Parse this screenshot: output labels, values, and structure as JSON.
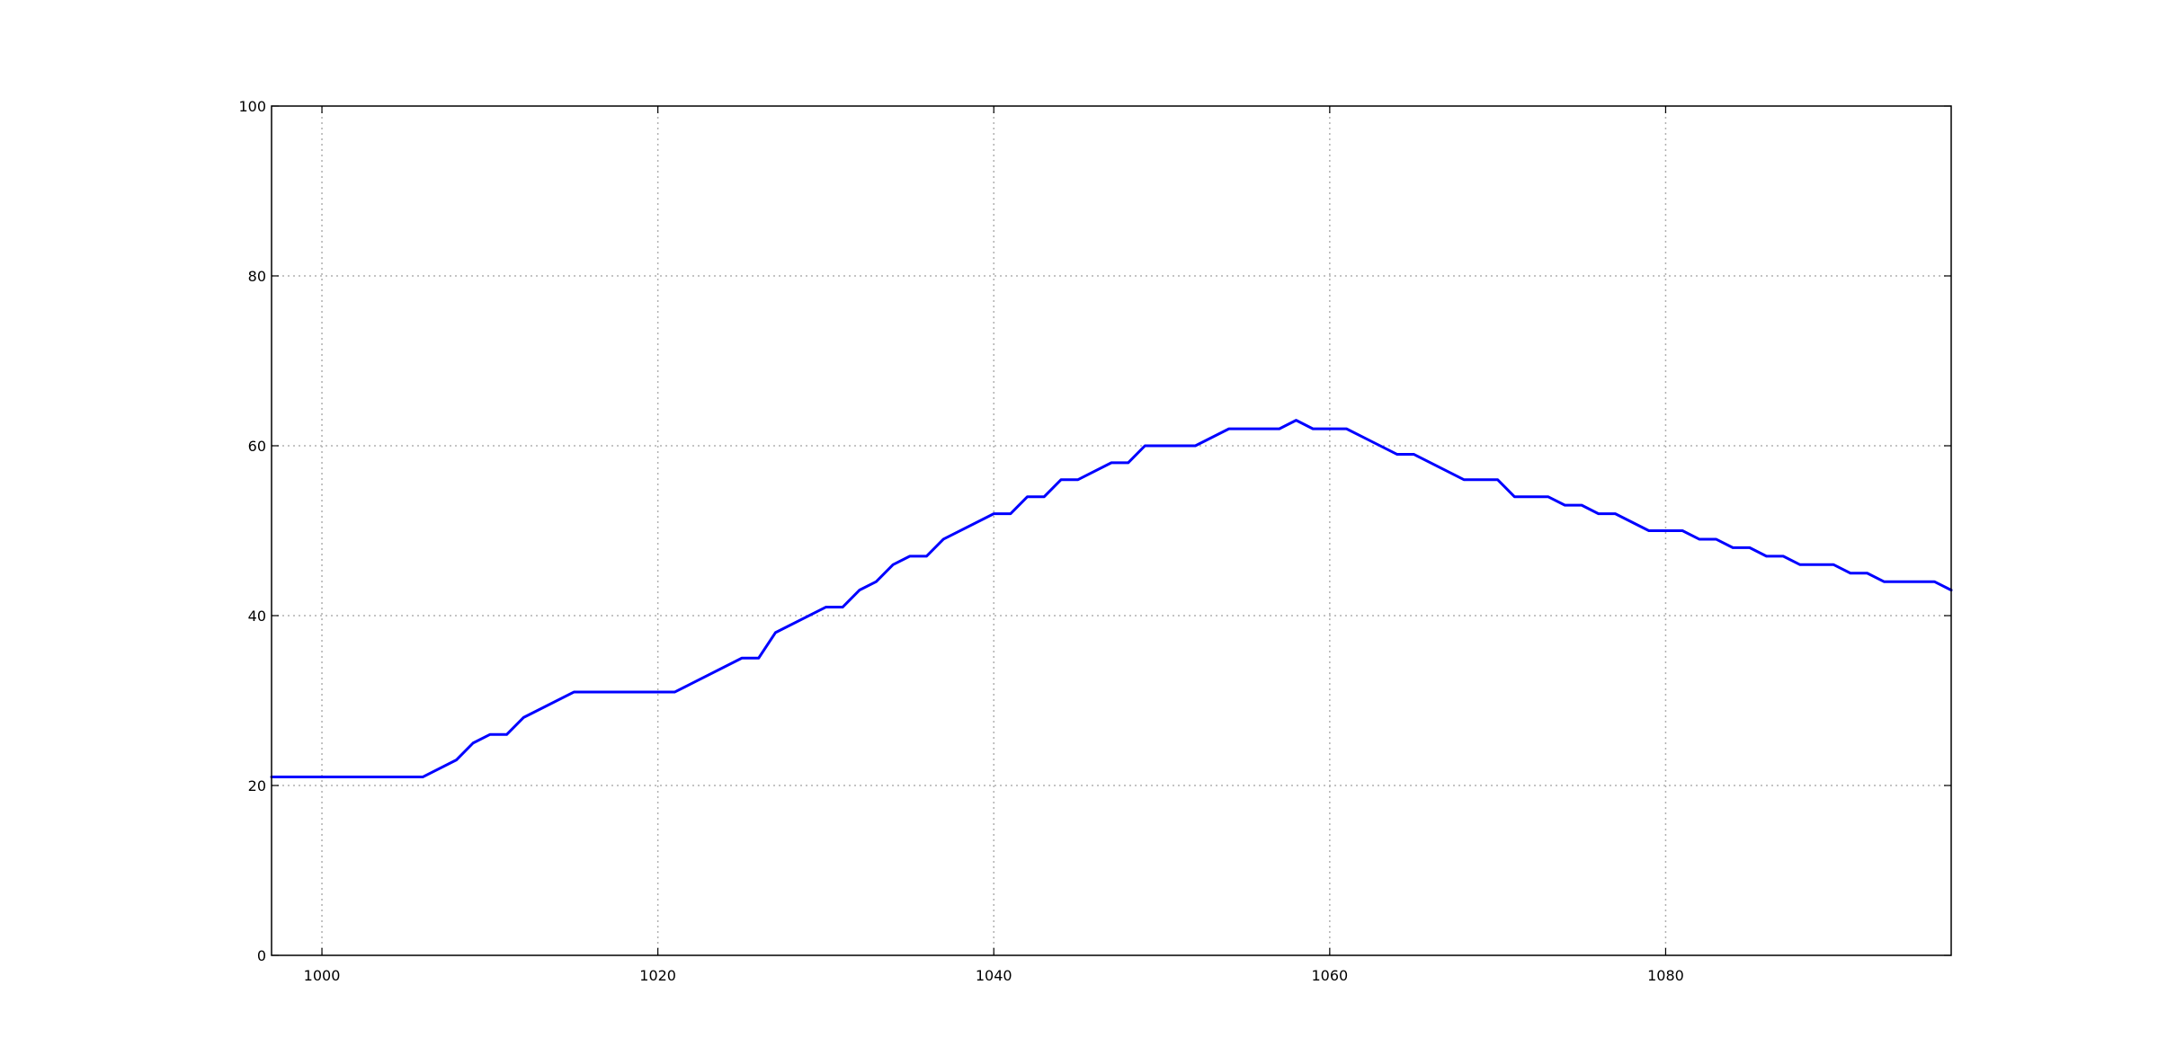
{
  "chart_data": {
    "type": "line",
    "title": "",
    "xlabel": "",
    "ylabel": "",
    "xlim": [
      997,
      1097
    ],
    "ylim": [
      0,
      100
    ],
    "x_ticks": [
      1000,
      1020,
      1040,
      1060,
      1080
    ],
    "y_ticks": [
      0,
      20,
      40,
      60,
      80,
      100
    ],
    "grid": true,
    "legend": "none",
    "series": [
      {
        "color": "#0000ff",
        "x": [
          997,
          1006,
          1008,
          1009,
          1010,
          1011,
          1012,
          1015,
          1021,
          1025,
          1026,
          1027,
          1030,
          1031,
          1032,
          1033,
          1034,
          1035,
          1036,
          1037,
          1040,
          1041,
          1042,
          1043,
          1044,
          1045,
          1047,
          1048,
          1049,
          1052,
          1054,
          1057,
          1058,
          1059,
          1061,
          1064,
          1065,
          1068,
          1070,
          1071,
          1073,
          1074,
          1075,
          1076,
          1077,
          1079,
          1081,
          1082,
          1083,
          1084,
          1085,
          1086,
          1087,
          1088,
          1090,
          1091,
          1092,
          1093,
          1096,
          1097
        ],
        "y": [
          21,
          21,
          23,
          25,
          26,
          26,
          28,
          31,
          31,
          35,
          35,
          38,
          41,
          41,
          43,
          44,
          46,
          47,
          47,
          49,
          52,
          52,
          54,
          54,
          56,
          56,
          58,
          58,
          60,
          60,
          62,
          62,
          63,
          62,
          62,
          59,
          59,
          56,
          56,
          54,
          54,
          53,
          53,
          52,
          52,
          50,
          50,
          49,
          49,
          48,
          48,
          47,
          47,
          46,
          46,
          45,
          45,
          44,
          44,
          43
        ]
      }
    ]
  }
}
